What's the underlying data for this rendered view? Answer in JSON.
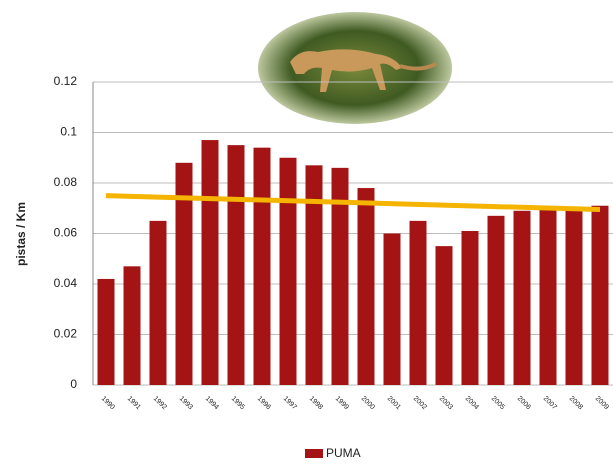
{
  "chart_data": {
    "type": "bar",
    "y_label": "pistas / Km",
    "categories": [
      "1990",
      "1991",
      "1992",
      "1993",
      "1994",
      "1995",
      "1996",
      "1997",
      "1998",
      "1999",
      "2000",
      "2001",
      "2002",
      "2003",
      "2004",
      "2005",
      "2006",
      "2007",
      "2008",
      "2009"
    ],
    "series": [
      {
        "name": "PUMA",
        "color": "#a51414",
        "values": [
          0.042,
          0.047,
          0.065,
          0.088,
          0.097,
          0.095,
          0.094,
          0.09,
          0.087,
          0.086,
          0.078,
          0.06,
          0.065,
          0.055,
          0.061,
          0.067,
          0.069,
          0.07,
          0.069,
          0.071
        ]
      }
    ],
    "trend": {
      "color": "#f4b400",
      "values": [
        0.075,
        0.0695
      ]
    },
    "ylim": [
      0,
      0.12
    ],
    "yticks": [
      0,
      0.02,
      0.04,
      0.06,
      0.08,
      0.1,
      0.12
    ],
    "grid": true
  }
}
